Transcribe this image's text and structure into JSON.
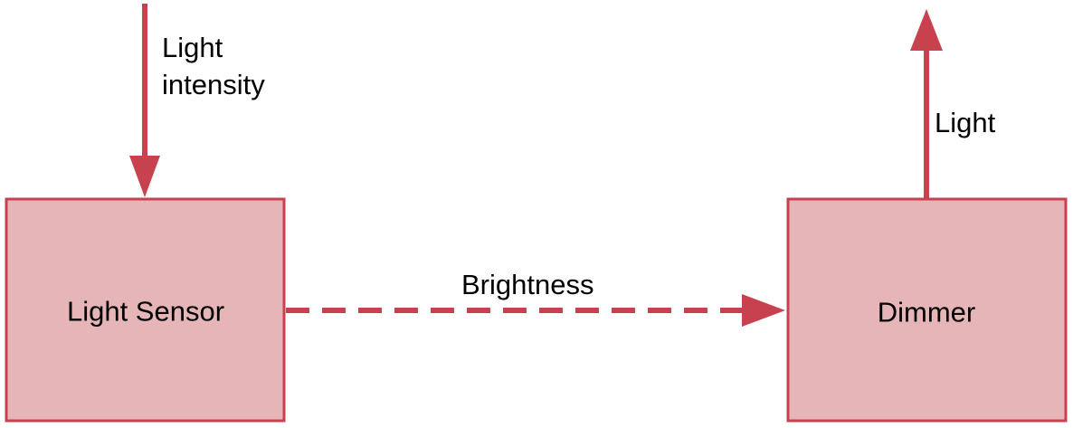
{
  "colors": {
    "accent": "#c8414f",
    "node_fill": "#e6b5b8",
    "node_stroke": "#c8414f",
    "text": "#000000"
  },
  "nodes": {
    "light_sensor": {
      "label": "Light Sensor"
    },
    "dimmer": {
      "label": "Dimmer"
    }
  },
  "edges": {
    "light_intensity": {
      "label_line1": "Light",
      "label_line2": "intensity",
      "style": "solid"
    },
    "brightness": {
      "label": "Brightness",
      "style": "dashed"
    },
    "light": {
      "label": "Light",
      "style": "solid"
    }
  }
}
